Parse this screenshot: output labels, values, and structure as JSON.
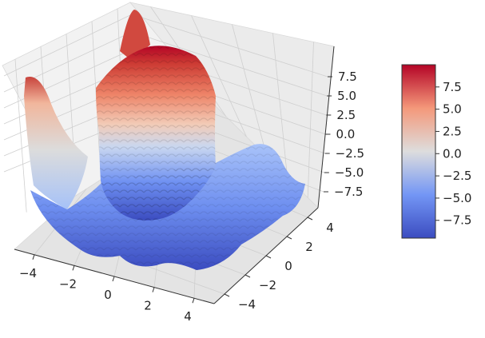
{
  "chart_data": {
    "type": "surface3d",
    "title": "",
    "xlabel": "",
    "ylabel": "",
    "zlabel": "",
    "colormap": "coolwarm",
    "colors": {
      "low": "#3b4cc0",
      "mid": "#dddddd",
      "high": "#b40426"
    },
    "grid": true,
    "xlim": [
      -5,
      5
    ],
    "ylim": [
      -5,
      5
    ],
    "zlim": [
      -10,
      10
    ],
    "x_ticks": [
      "−4",
      "−2",
      "0",
      "2",
      "4"
    ],
    "y_ticks": [
      "−4",
      "−2",
      "0",
      "2",
      "4"
    ],
    "z_ticks": [
      "7.5",
      "5.0",
      "2.5",
      "0.0",
      "−2.5",
      "−5.0",
      "−7.5"
    ],
    "colorbar": {
      "position": "right",
      "range": [
        -9.5,
        10
      ],
      "ticks": [
        "7.5",
        "5.0",
        "2.5",
        "0.0",
        "−2.5",
        "−5.0",
        "−7.5"
      ]
    },
    "surface_features": [
      {
        "description": "central raised plateau",
        "x": 0.5,
        "y": -0.5,
        "z": 9.5
      },
      {
        "description": "back peak",
        "x": 0,
        "y": 5,
        "z": 10
      },
      {
        "description": "left corner spike",
        "x": -5,
        "y": 5,
        "z": 7
      }
    ]
  }
}
